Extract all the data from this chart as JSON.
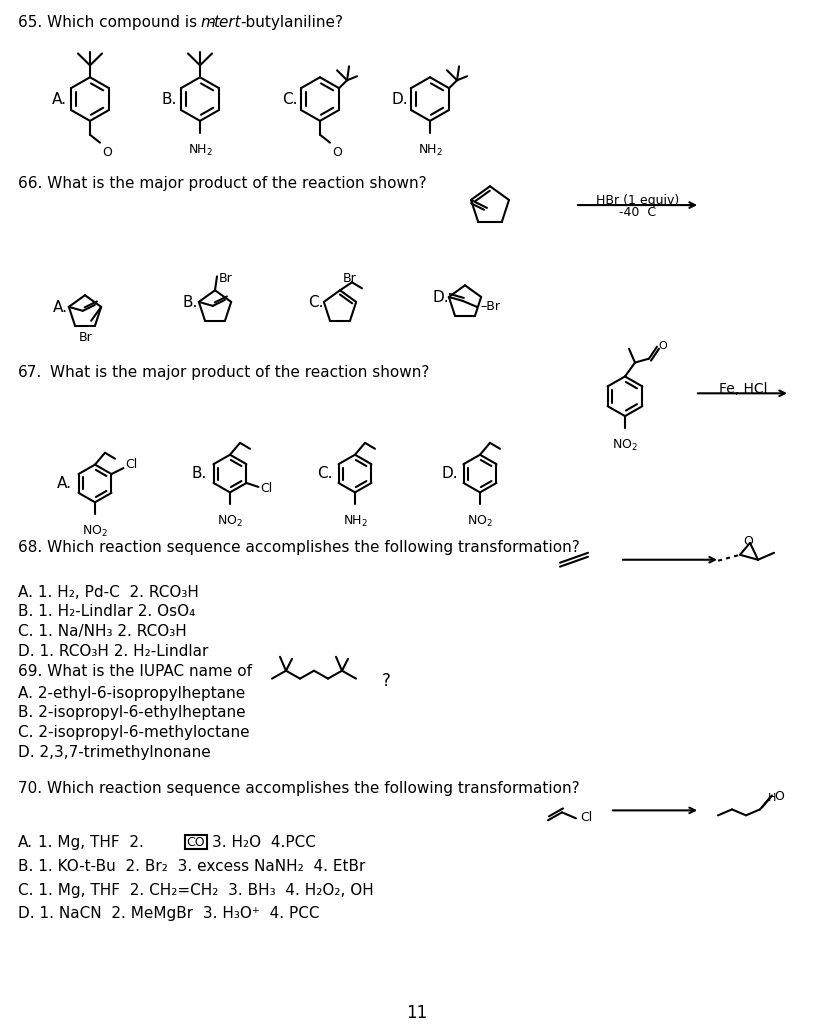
{
  "background_color": "#ffffff",
  "page_number": "11",
  "q65_text1": "65. Which compound is ",
  "q65_m": "m",
  "q65_dash1": "-",
  "q65_tert": "tert",
  "q65_rest": "-butylaniline?",
  "q66_text": "66. What is the major product of the reaction shown?",
  "q67_num": "67.",
  "q67_text": "What is the major product of the reaction shown?",
  "q67_reagent": "Fe, HCl",
  "q66_hbr": "HBr (1 equiv)",
  "q66_temp": "-40  C",
  "q68_text": "68. Which reaction sequence accomplishes the following transformation?",
  "q68_optA": "A. 1. H₂, Pd-C  2. RCO₃H",
  "q68_optB": "B. 1. H₂-Lindlar 2. OsO₄",
  "q68_optC": "C. 1. Na/NH₃ 2. RCO₃H",
  "q68_optD": "D. 1. RCO₃H 2. H₂-Lindlar",
  "q69_text": "69. What is the IUPAC name of",
  "q69_optA": "A. 2-ethyl-6-isopropylheptane",
  "q69_optB": "B. 2-isopropyl-6-ethylheptane",
  "q69_optC": "C. 2-isopropyl-6-methyloctane",
  "q69_optD": "D. 2,3,7-trimethylnonane",
  "q70_text": "70. Which reaction sequence accomplishes the following transformation?",
  "q70_optA1": "A.",
  "q70_optA2": "1. Mg, THF  2.",
  "q70_optA3": "3. H₂O  4.PCC",
  "q70_optB": "B. 1. KO-t-Bu  2. Br₂  3. excess NaNH₂  4. EtBr",
  "q70_optC": "C. 1. Mg, THF  2. CH₂=CH₂  3. BH₃  4. H₂O₂, OH",
  "q70_optD": "D. 1. NaCN  2. MeMgBr  3. H₃O⁺  4. PCC",
  "fontsize_main": 11,
  "fontsize_label": 11,
  "fontsize_struct": 9
}
